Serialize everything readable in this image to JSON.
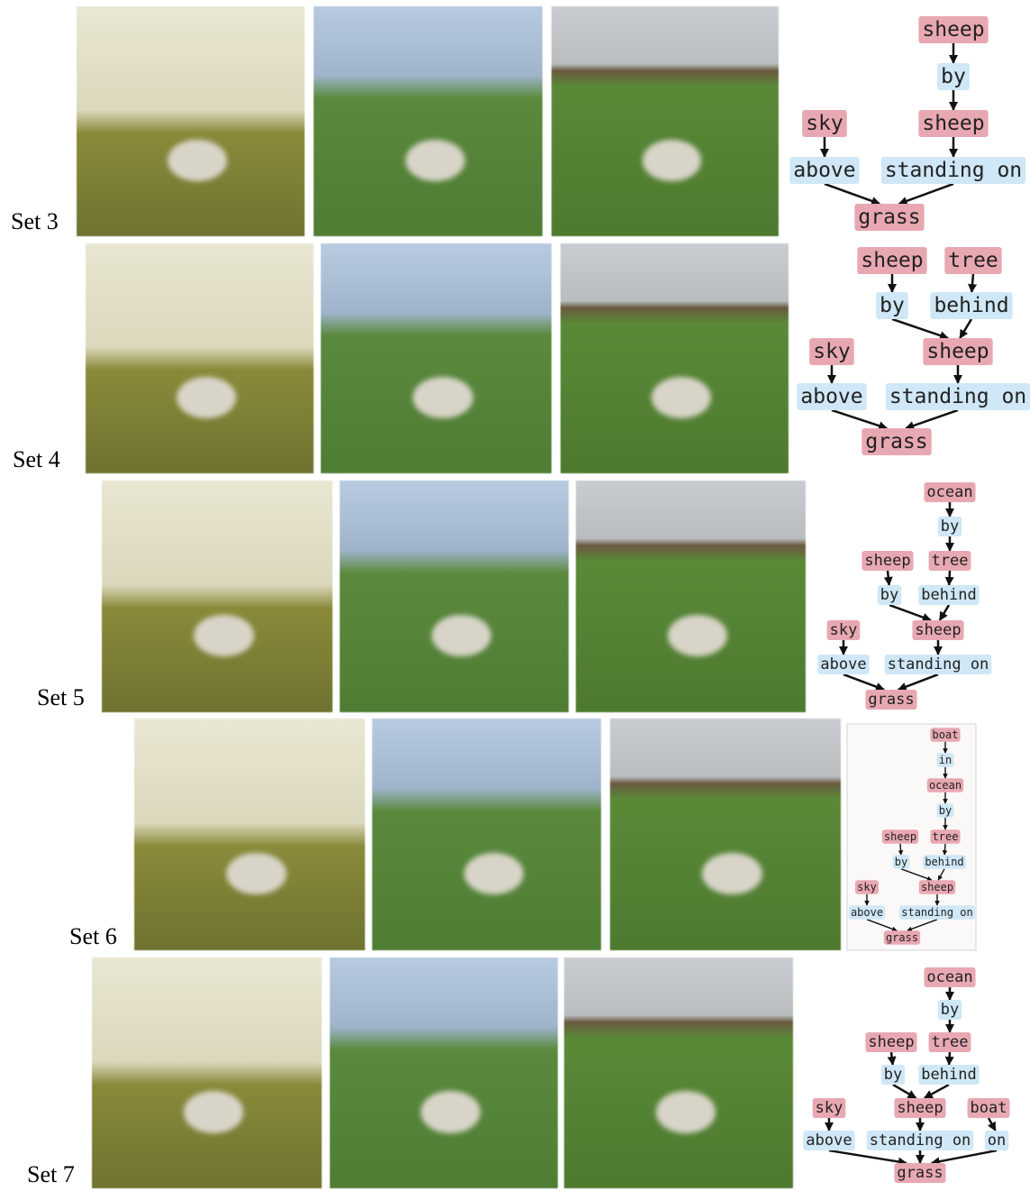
{
  "sets": [
    {
      "label": "Set 3",
      "nodes": [
        {
          "label": "sheep",
          "color": "#e8a8b2"
        },
        {
          "label": "by",
          "color": "#cfe7f6"
        },
        {
          "label": "sky",
          "color": "#e8a8b2"
        },
        {
          "label": "sheep",
          "color": "#e8a8b2"
        },
        {
          "label": "above",
          "color": "#cfe7f6"
        },
        {
          "label": "standing on",
          "color": "#cfe7f6"
        },
        {
          "label": "grass",
          "color": "#e8a8b2"
        }
      ],
      "edges": [
        [
          0,
          1
        ],
        [
          1,
          3
        ],
        [
          2,
          4
        ],
        [
          3,
          5
        ],
        [
          4,
          6
        ],
        [
          5,
          6
        ]
      ]
    },
    {
      "label": "Set 4",
      "nodes": [
        {
          "label": "sheep",
          "color": "#e8a8b2"
        },
        {
          "label": "tree",
          "color": "#e8a8b2"
        },
        {
          "label": "by",
          "color": "#cfe7f6"
        },
        {
          "label": "behind",
          "color": "#cfe7f6"
        },
        {
          "label": "sky",
          "color": "#e8a8b2"
        },
        {
          "label": "sheep",
          "color": "#e8a8b2"
        },
        {
          "label": "above",
          "color": "#cfe7f6"
        },
        {
          "label": "standing on",
          "color": "#cfe7f6"
        },
        {
          "label": "grass",
          "color": "#e8a8b2"
        }
      ],
      "edges": [
        [
          0,
          2
        ],
        [
          1,
          3
        ],
        [
          2,
          5
        ],
        [
          3,
          5
        ],
        [
          4,
          6
        ],
        [
          5,
          7
        ],
        [
          6,
          8
        ],
        [
          7,
          8
        ]
      ]
    },
    {
      "label": "Set 5",
      "nodes": [
        {
          "label": "ocean",
          "color": "#e8a8b2"
        },
        {
          "label": "by",
          "color": "#cfe7f6"
        },
        {
          "label": "sheep",
          "color": "#e8a8b2"
        },
        {
          "label": "tree",
          "color": "#e8a8b2"
        },
        {
          "label": "by",
          "color": "#cfe7f6"
        },
        {
          "label": "behind",
          "color": "#cfe7f6"
        },
        {
          "label": "sky",
          "color": "#e8a8b2"
        },
        {
          "label": "sheep",
          "color": "#e8a8b2"
        },
        {
          "label": "above",
          "color": "#cfe7f6"
        },
        {
          "label": "standing on",
          "color": "#cfe7f6"
        },
        {
          "label": "grass",
          "color": "#e8a8b2"
        }
      ],
      "edges": [
        [
          0,
          1
        ],
        [
          1,
          3
        ],
        [
          2,
          4
        ],
        [
          3,
          5
        ],
        [
          4,
          7
        ],
        [
          5,
          7
        ],
        [
          6,
          8
        ],
        [
          7,
          9
        ],
        [
          8,
          10
        ],
        [
          9,
          10
        ]
      ]
    },
    {
      "label": "Set 6",
      "nodes": [
        {
          "label": "boat",
          "color": "#e8a8b2"
        },
        {
          "label": "in",
          "color": "#cfe7f6"
        },
        {
          "label": "ocean",
          "color": "#e8a8b2"
        },
        {
          "label": "by",
          "color": "#cfe7f6"
        },
        {
          "label": "sheep",
          "color": "#e8a8b2"
        },
        {
          "label": "tree",
          "color": "#e8a8b2"
        },
        {
          "label": "by",
          "color": "#cfe7f6"
        },
        {
          "label": "behind",
          "color": "#cfe7f6"
        },
        {
          "label": "sky",
          "color": "#e8a8b2"
        },
        {
          "label": "sheep",
          "color": "#e8a8b2"
        },
        {
          "label": "above",
          "color": "#cfe7f6"
        },
        {
          "label": "standing on",
          "color": "#cfe7f6"
        },
        {
          "label": "grass",
          "color": "#e8a8b2"
        }
      ],
      "edges": [
        [
          0,
          1
        ],
        [
          1,
          2
        ],
        [
          2,
          3
        ],
        [
          3,
          5
        ],
        [
          4,
          6
        ],
        [
          5,
          7
        ],
        [
          6,
          9
        ],
        [
          7,
          9
        ],
        [
          8,
          10
        ],
        [
          9,
          11
        ],
        [
          10,
          12
        ],
        [
          11,
          12
        ]
      ]
    },
    {
      "label": "Set 7",
      "nodes": [
        {
          "label": "ocean",
          "color": "#e8a8b2"
        },
        {
          "label": "by",
          "color": "#cfe7f6"
        },
        {
          "label": "sheep",
          "color": "#e8a8b2"
        },
        {
          "label": "tree",
          "color": "#e8a8b2"
        },
        {
          "label": "by",
          "color": "#cfe7f6"
        },
        {
          "label": "behind",
          "color": "#cfe7f6"
        },
        {
          "label": "sky",
          "color": "#e8a8b2"
        },
        {
          "label": "sheep",
          "color": "#e8a8b2"
        },
        {
          "label": "boat",
          "color": "#e8a8b2"
        },
        {
          "label": "above",
          "color": "#cfe7f6"
        },
        {
          "label": "standing on",
          "color": "#cfe7f6"
        },
        {
          "label": "on",
          "color": "#cfe7f6"
        },
        {
          "label": "grass",
          "color": "#e8a8b2"
        }
      ],
      "edges": [
        [
          0,
          1
        ],
        [
          1,
          3
        ],
        [
          2,
          4
        ],
        [
          3,
          5
        ],
        [
          4,
          7
        ],
        [
          5,
          7
        ],
        [
          6,
          9
        ],
        [
          7,
          10
        ],
        [
          8,
          11
        ],
        [
          9,
          12
        ],
        [
          10,
          12
        ],
        [
          11,
          12
        ]
      ]
    }
  ]
}
